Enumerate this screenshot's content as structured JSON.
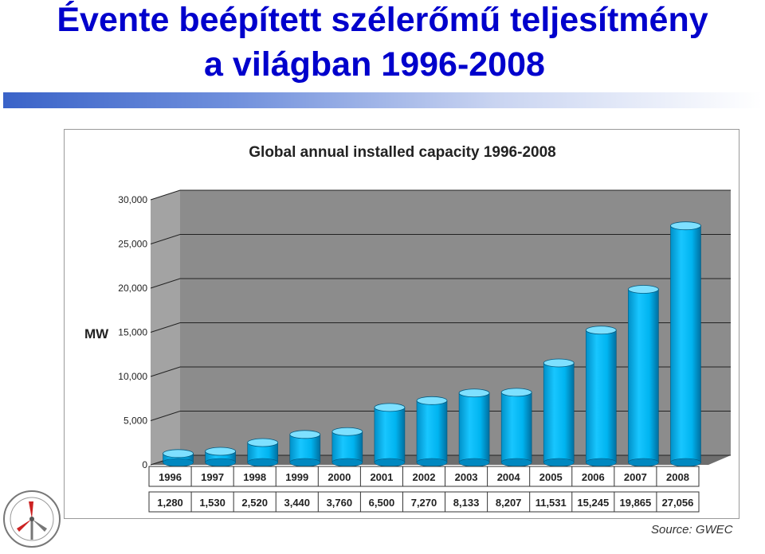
{
  "page": {
    "title_line_1": "Évente beépített szélerőmű teljesítmény",
    "title_line_2": "a világban 1996-2008",
    "source": "Source: GWEC",
    "accent_color": "#0000cc",
    "logo_text": "MAGYAR SZÉLENERGIA TÁRSASÁG · ALAPÍTVA: 1999"
  },
  "chart_data": {
    "type": "bar",
    "title": "Global annual installed capacity 1996-2008",
    "ylabel": "MW",
    "xlabel": "",
    "ylim": [
      0,
      30000
    ],
    "yticks": [
      "0",
      "5,000",
      "10,000",
      "15,000",
      "20,000",
      "25,000",
      "30,000"
    ],
    "categories": [
      "1996",
      "1997",
      "1998",
      "1999",
      "2000",
      "2001",
      "2002",
      "2003",
      "2004",
      "2005",
      "2006",
      "2007",
      "2008"
    ],
    "values": [
      1280,
      1530,
      2520,
      3440,
      3760,
      6500,
      7270,
      8133,
      8207,
      11531,
      15245,
      19865,
      27056
    ],
    "value_labels": [
      "1,280",
      "1,530",
      "2,520",
      "3,440",
      "3,760",
      "6,500",
      "7,270",
      "8,133",
      "8,207",
      "11,531",
      "15,245",
      "19,865",
      "27,056"
    ],
    "grid": true,
    "bar_color": "#00bfff",
    "wall_color": "#8c8c8c"
  }
}
